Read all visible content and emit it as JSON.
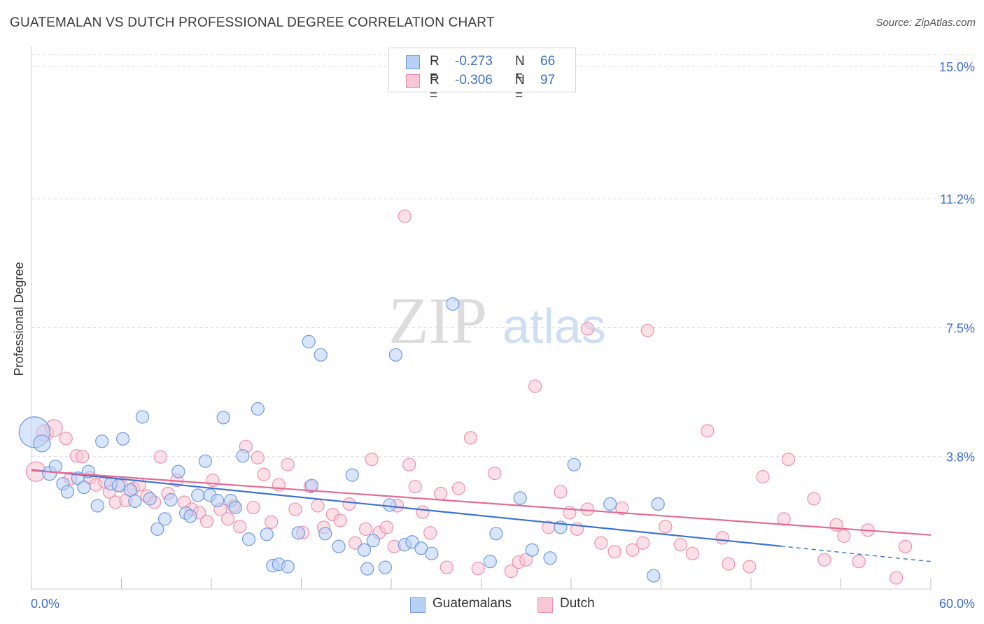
{
  "header": {
    "title": "GUATEMALAN VS DUTCH PROFESSIONAL DEGREE CORRELATION CHART",
    "source": "Source: ZipAtlas.com"
  },
  "watermark": {
    "zip": "ZIP",
    "atlas": "atlas"
  },
  "legend": {
    "rows": [
      {
        "r_label": "R =",
        "r_value": "-0.273",
        "n_label": "N =",
        "n_value": "66"
      },
      {
        "r_label": "R =",
        "r_value": "-0.306",
        "n_label": "N =",
        "n_value": "97"
      }
    ]
  },
  "bottom_legend": {
    "guatemalans": "Guatemalans",
    "dutch": "Dutch"
  },
  "colors": {
    "guatemalan_fill": "#b9d0f5",
    "guatemalan_stroke": "#6f9ae0",
    "guatemalan_line": "#3a72d4",
    "dutch_fill": "#f9c6d6",
    "dutch_stroke": "#ee8fac",
    "dutch_line": "#e36b93",
    "tick_label": "#3d6fd1",
    "grid": "#d9d9d9"
  },
  "chart_data": {
    "type": "scatter",
    "title": "GUATEMALAN VS DUTCH PROFESSIONAL DEGREE CORRELATION CHART",
    "xlabel": "",
    "ylabel": "Professional Degree",
    "xlim": [
      0,
      60
    ],
    "ylim": [
      0,
      15.5
    ],
    "x_tick_labels": [
      {
        "value": 0,
        "label": "0.0%"
      },
      {
        "value": 60,
        "label": "60.0%"
      }
    ],
    "y_tick_labels": [
      {
        "value": 3.8,
        "label": "3.8%"
      },
      {
        "value": 7.5,
        "label": "7.5%"
      },
      {
        "value": 11.2,
        "label": "11.2%"
      },
      {
        "value": 15.0,
        "label": "15.0%"
      }
    ],
    "x_minor_ticks": [
      0,
      6,
      12,
      18,
      24,
      30,
      36,
      42,
      48,
      54,
      60
    ],
    "grid": true,
    "legend_position": "top-center",
    "series": [
      {
        "name": "Guatemalans",
        "r": -0.273,
        "n": 66,
        "trend": {
          "x0": 0,
          "y0": 3.42,
          "x1": 50,
          "y1": 1.23,
          "dashed_to_x": 60,
          "dashed_to_y": 0.79
        },
        "points": [
          [
            0.2,
            4.5,
            22
          ],
          [
            0.7,
            4.18,
            12
          ],
          [
            1.2,
            3.32,
            10
          ],
          [
            1.6,
            3.52,
            9
          ],
          [
            2.1,
            3.02,
            9
          ],
          [
            2.4,
            2.79,
            9
          ],
          [
            3.1,
            3.18,
            9
          ],
          [
            3.5,
            2.92,
            9
          ],
          [
            3.8,
            3.37,
            9
          ],
          [
            4.4,
            2.39,
            9
          ],
          [
            4.7,
            4.24,
            9
          ],
          [
            5.3,
            3.02,
            9
          ],
          [
            5.8,
            2.97,
            9
          ],
          [
            6.1,
            4.31,
            9
          ],
          [
            6.6,
            2.84,
            9
          ],
          [
            6.9,
            2.52,
            9
          ],
          [
            7.4,
            4.94,
            9
          ],
          [
            7.9,
            2.59,
            9
          ],
          [
            8.4,
            1.72,
            9
          ],
          [
            8.9,
            2.01,
            9
          ],
          [
            9.3,
            2.56,
            9
          ],
          [
            9.8,
            3.37,
            9
          ],
          [
            10.3,
            2.18,
            9
          ],
          [
            10.6,
            2.09,
            9
          ],
          [
            11.1,
            2.69,
            9
          ],
          [
            11.6,
            3.67,
            9
          ],
          [
            11.9,
            2.69,
            9
          ],
          [
            12.4,
            2.54,
            9
          ],
          [
            12.8,
            4.92,
            9
          ],
          [
            13.3,
            2.54,
            9
          ],
          [
            13.6,
            2.34,
            9
          ],
          [
            14.1,
            3.82,
            9
          ],
          [
            14.5,
            1.43,
            9
          ],
          [
            15.1,
            5.17,
            9
          ],
          [
            15.7,
            1.57,
            9
          ],
          [
            16.1,
            0.67,
            9
          ],
          [
            16.5,
            0.71,
            9
          ],
          [
            17.1,
            0.64,
            9
          ],
          [
            17.8,
            1.61,
            9
          ],
          [
            18.7,
            2.97,
            9
          ],
          [
            18.5,
            7.1,
            9
          ],
          [
            19.3,
            6.72,
            9
          ],
          [
            19.6,
            1.59,
            9
          ],
          [
            20.5,
            1.22,
            9
          ],
          [
            21.4,
            3.27,
            9
          ],
          [
            22.2,
            1.12,
            9
          ],
          [
            22.4,
            0.58,
            9
          ],
          [
            22.8,
            1.39,
            9
          ],
          [
            23.6,
            0.62,
            9
          ],
          [
            23.9,
            2.41,
            9
          ],
          [
            24.3,
            6.72,
            9
          ],
          [
            24.9,
            1.27,
            9
          ],
          [
            25.4,
            1.35,
            9
          ],
          [
            26.0,
            1.17,
            9
          ],
          [
            26.7,
            1.02,
            9
          ],
          [
            28.1,
            8.18,
            9
          ],
          [
            30.6,
            0.79,
            9
          ],
          [
            31.0,
            1.59,
            9
          ],
          [
            32.6,
            2.61,
            9
          ],
          [
            33.4,
            1.12,
            9
          ],
          [
            34.6,
            0.89,
            9
          ],
          [
            35.3,
            1.77,
            9
          ],
          [
            36.2,
            3.57,
            9
          ],
          [
            38.6,
            2.44,
            9
          ],
          [
            41.5,
            0.38,
            9
          ],
          [
            41.8,
            2.44,
            9
          ]
        ]
      },
      {
        "name": "Dutch",
        "r": -0.306,
        "n": 97,
        "trend": {
          "x0": 0,
          "y0": 3.4,
          "x1": 60,
          "y1": 1.55
        },
        "points": [
          [
            0.3,
            3.37,
            14
          ],
          [
            0.9,
            4.48,
            12
          ],
          [
            1.5,
            4.62,
            12
          ],
          [
            2.3,
            4.32,
            9
          ],
          [
            2.6,
            3.17,
            9
          ],
          [
            3.0,
            3.82,
            9
          ],
          [
            3.4,
            3.8,
            9
          ],
          [
            3.9,
            3.19,
            9
          ],
          [
            4.3,
            2.99,
            9
          ],
          [
            4.9,
            3.07,
            9
          ],
          [
            5.2,
            2.79,
            9
          ],
          [
            5.6,
            2.49,
            9
          ],
          [
            6.0,
            2.96,
            9
          ],
          [
            6.3,
            2.54,
            9
          ],
          [
            6.8,
            2.89,
            9
          ],
          [
            7.2,
            2.99,
            9
          ],
          [
            7.7,
            2.67,
            9
          ],
          [
            8.2,
            2.49,
            9
          ],
          [
            8.6,
            3.79,
            9
          ],
          [
            9.1,
            2.74,
            9
          ],
          [
            9.7,
            3.12,
            9
          ],
          [
            10.2,
            2.49,
            9
          ],
          [
            10.7,
            2.29,
            9
          ],
          [
            11.2,
            2.19,
            9
          ],
          [
            11.7,
            1.94,
            9
          ],
          [
            12.1,
            3.12,
            9
          ],
          [
            12.6,
            2.29,
            9
          ],
          [
            13.1,
            2.01,
            9
          ],
          [
            13.5,
            2.39,
            9
          ],
          [
            13.9,
            1.79,
            9
          ],
          [
            14.3,
            4.09,
            9
          ],
          [
            14.8,
            2.34,
            9
          ],
          [
            15.1,
            3.77,
            9
          ],
          [
            15.5,
            3.29,
            9
          ],
          [
            16.0,
            1.92,
            9
          ],
          [
            16.5,
            2.99,
            9
          ],
          [
            17.1,
            3.57,
            9
          ],
          [
            17.6,
            2.29,
            9
          ],
          [
            18.1,
            1.62,
            9
          ],
          [
            18.6,
            2.94,
            9
          ],
          [
            19.1,
            2.39,
            9
          ],
          [
            19.5,
            1.77,
            9
          ],
          [
            20.1,
            2.14,
            9
          ],
          [
            20.6,
            1.97,
            9
          ],
          [
            21.2,
            2.44,
            9
          ],
          [
            21.6,
            1.32,
            9
          ],
          [
            22.3,
            1.72,
            9
          ],
          [
            22.7,
            3.72,
            9
          ],
          [
            23.2,
            1.62,
            9
          ],
          [
            23.7,
            1.77,
            9
          ],
          [
            24.2,
            1.22,
            9
          ],
          [
            24.9,
            10.7,
            9
          ],
          [
            25.2,
            3.57,
            9
          ],
          [
            25.6,
            2.94,
            9
          ],
          [
            26.1,
            2.21,
            9
          ],
          [
            26.6,
            1.61,
            9
          ],
          [
            27.3,
            2.74,
            9
          ],
          [
            27.7,
            0.62,
            9
          ],
          [
            28.5,
            2.89,
            9
          ],
          [
            29.3,
            4.34,
            9
          ],
          [
            29.8,
            0.59,
            9
          ],
          [
            30.9,
            3.32,
            9
          ],
          [
            32.0,
            0.51,
            9
          ],
          [
            32.5,
            0.77,
            9
          ],
          [
            33.0,
            0.84,
            9
          ],
          [
            33.6,
            5.82,
            9
          ],
          [
            34.5,
            1.77,
            9
          ],
          [
            35.3,
            2.79,
            9
          ],
          [
            35.9,
            2.19,
            9
          ],
          [
            36.4,
            1.72,
            9
          ],
          [
            37.1,
            2.29,
            9
          ],
          [
            38.0,
            1.32,
            9
          ],
          [
            38.9,
            1.07,
            9
          ],
          [
            39.4,
            2.32,
            9
          ],
          [
            40.1,
            1.12,
            9
          ],
          [
            40.8,
            1.32,
            9
          ],
          [
            41.1,
            7.42,
            9
          ],
          [
            42.3,
            1.79,
            9
          ],
          [
            43.3,
            1.27,
            9
          ],
          [
            44.1,
            1.02,
            9
          ],
          [
            45.1,
            4.54,
            9
          ],
          [
            46.1,
            1.47,
            9
          ],
          [
            46.5,
            0.72,
            9
          ],
          [
            47.9,
            0.64,
            9
          ],
          [
            48.8,
            3.22,
            9
          ],
          [
            50.2,
            2.01,
            9
          ],
          [
            50.5,
            3.72,
            9
          ],
          [
            52.2,
            2.59,
            9
          ],
          [
            52.9,
            0.84,
            9
          ],
          [
            53.7,
            1.84,
            9
          ],
          [
            54.2,
            1.52,
            9
          ],
          [
            55.2,
            0.79,
            9
          ],
          [
            55.8,
            1.69,
            9
          ],
          [
            57.7,
            0.32,
            9
          ],
          [
            58.3,
            1.22,
            9
          ],
          [
            37.1,
            7.47,
            9
          ],
          [
            24.4,
            2.39,
            9
          ]
        ]
      }
    ]
  }
}
